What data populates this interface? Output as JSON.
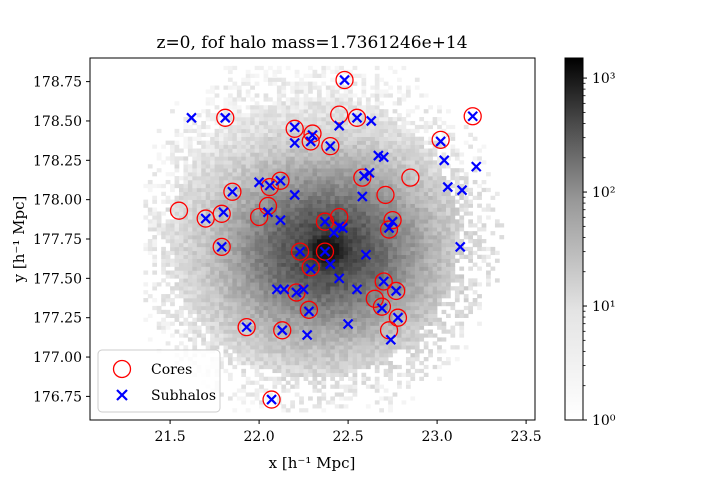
{
  "chart_data": {
    "type": "scatter",
    "title": "z=0, fof halo mass=1.7361246e+14",
    "xlabel": "x [h⁻¹ Mpc]",
    "ylabel": "y [h⁻¹ Mpc]",
    "xlim": [
      21.05,
      23.55
    ],
    "ylim": [
      176.6,
      178.9
    ],
    "xticks": [
      21.5,
      22.0,
      22.5,
      23.0,
      23.5
    ],
    "xtick_labels": [
      "21.5",
      "22.0",
      "22.5",
      "23.0",
      "23.5"
    ],
    "yticks": [
      176.75,
      177.0,
      177.25,
      177.5,
      177.75,
      178.0,
      178.25,
      178.5,
      178.75
    ],
    "ytick_labels": [
      "176.75",
      "177.00",
      "177.25",
      "177.50",
      "177.75",
      "178.00",
      "178.25",
      "178.50",
      "178.75"
    ],
    "grid": false,
    "legend_position": "lower-left",
    "background": {
      "type": "heatmap",
      "description": "2D histogram of particle counts, grayscale, log scale",
      "center": [
        22.37,
        177.67
      ],
      "colorbar": {
        "scale": "log",
        "range": [
          1,
          1500
        ],
        "tick_labels": [
          "10⁰",
          "10¹",
          "10²",
          "10³"
        ],
        "tick_values": [
          1,
          10,
          100,
          1000
        ]
      }
    },
    "series": [
      {
        "name": "Cores",
        "marker": "open-circle",
        "color": "#ff0000",
        "points": [
          [
            22.48,
            178.76
          ],
          [
            21.81,
            178.52
          ],
          [
            22.45,
            178.54
          ],
          [
            22.55,
            178.52
          ],
          [
            23.2,
            178.53
          ],
          [
            22.2,
            178.45
          ],
          [
            22.3,
            178.42
          ],
          [
            22.4,
            178.34
          ],
          [
            23.02,
            178.38
          ],
          [
            22.29,
            178.37
          ],
          [
            22.12,
            178.12
          ],
          [
            22.06,
            178.08
          ],
          [
            22.58,
            178.14
          ],
          [
            22.85,
            178.14
          ],
          [
            21.85,
            178.05
          ],
          [
            22.71,
            178.03
          ],
          [
            21.55,
            177.93
          ],
          [
            21.7,
            177.88
          ],
          [
            21.79,
            177.91
          ],
          [
            22.05,
            177.96
          ],
          [
            22.0,
            177.89
          ],
          [
            22.37,
            177.86
          ],
          [
            22.45,
            177.89
          ],
          [
            22.75,
            177.87
          ],
          [
            22.73,
            177.81
          ],
          [
            21.79,
            177.7
          ],
          [
            22.23,
            177.67
          ],
          [
            22.37,
            177.67
          ],
          [
            22.29,
            177.57
          ],
          [
            22.7,
            177.48
          ],
          [
            22.77,
            177.42
          ],
          [
            22.21,
            177.41
          ],
          [
            22.65,
            177.37
          ],
          [
            22.28,
            177.3
          ],
          [
            22.69,
            177.32
          ],
          [
            22.78,
            177.25
          ],
          [
            21.93,
            177.19
          ],
          [
            22.13,
            177.17
          ],
          [
            22.73,
            177.17
          ],
          [
            22.07,
            176.73
          ]
        ]
      },
      {
        "name": "Subhalos",
        "marker": "x",
        "color": "#0000ff",
        "points": [
          [
            22.48,
            178.76
          ],
          [
            21.62,
            178.52
          ],
          [
            21.81,
            178.52
          ],
          [
            22.45,
            178.47
          ],
          [
            22.55,
            178.52
          ],
          [
            22.63,
            178.5
          ],
          [
            23.2,
            178.53
          ],
          [
            22.2,
            178.46
          ],
          [
            22.3,
            178.41
          ],
          [
            22.2,
            178.36
          ],
          [
            22.29,
            178.37
          ],
          [
            22.4,
            178.34
          ],
          [
            23.02,
            178.37
          ],
          [
            22.67,
            178.28
          ],
          [
            22.7,
            178.27
          ],
          [
            23.04,
            178.25
          ],
          [
            23.22,
            178.21
          ],
          [
            22.59,
            178.15
          ],
          [
            22.62,
            178.17
          ],
          [
            22.12,
            178.12
          ],
          [
            22.0,
            178.11
          ],
          [
            22.06,
            178.09
          ],
          [
            23.06,
            178.08
          ],
          [
            23.14,
            178.06
          ],
          [
            21.85,
            178.05
          ],
          [
            22.2,
            178.03
          ],
          [
            22.58,
            178.02
          ],
          [
            21.8,
            177.92
          ],
          [
            22.05,
            177.92
          ],
          [
            21.7,
            177.88
          ],
          [
            22.12,
            177.87
          ],
          [
            22.37,
            177.86
          ],
          [
            22.45,
            177.83
          ],
          [
            22.47,
            177.82
          ],
          [
            22.73,
            177.82
          ],
          [
            22.75,
            177.86
          ],
          [
            22.42,
            177.79
          ],
          [
            21.79,
            177.7
          ],
          [
            23.13,
            177.7
          ],
          [
            22.23,
            177.67
          ],
          [
            22.37,
            177.67
          ],
          [
            22.6,
            177.65
          ],
          [
            22.4,
            177.59
          ],
          [
            22.29,
            177.56
          ],
          [
            22.45,
            177.5
          ],
          [
            22.7,
            177.48
          ],
          [
            22.1,
            177.43
          ],
          [
            22.14,
            177.43
          ],
          [
            22.25,
            177.43
          ],
          [
            22.55,
            177.43
          ],
          [
            22.21,
            177.41
          ],
          [
            22.77,
            177.42
          ],
          [
            22.69,
            177.31
          ],
          [
            22.28,
            177.29
          ],
          [
            22.78,
            177.25
          ],
          [
            22.5,
            177.21
          ],
          [
            21.93,
            177.19
          ],
          [
            22.13,
            177.17
          ],
          [
            22.27,
            177.14
          ],
          [
            22.74,
            177.11
          ],
          [
            22.07,
            176.73
          ]
        ]
      }
    ]
  }
}
